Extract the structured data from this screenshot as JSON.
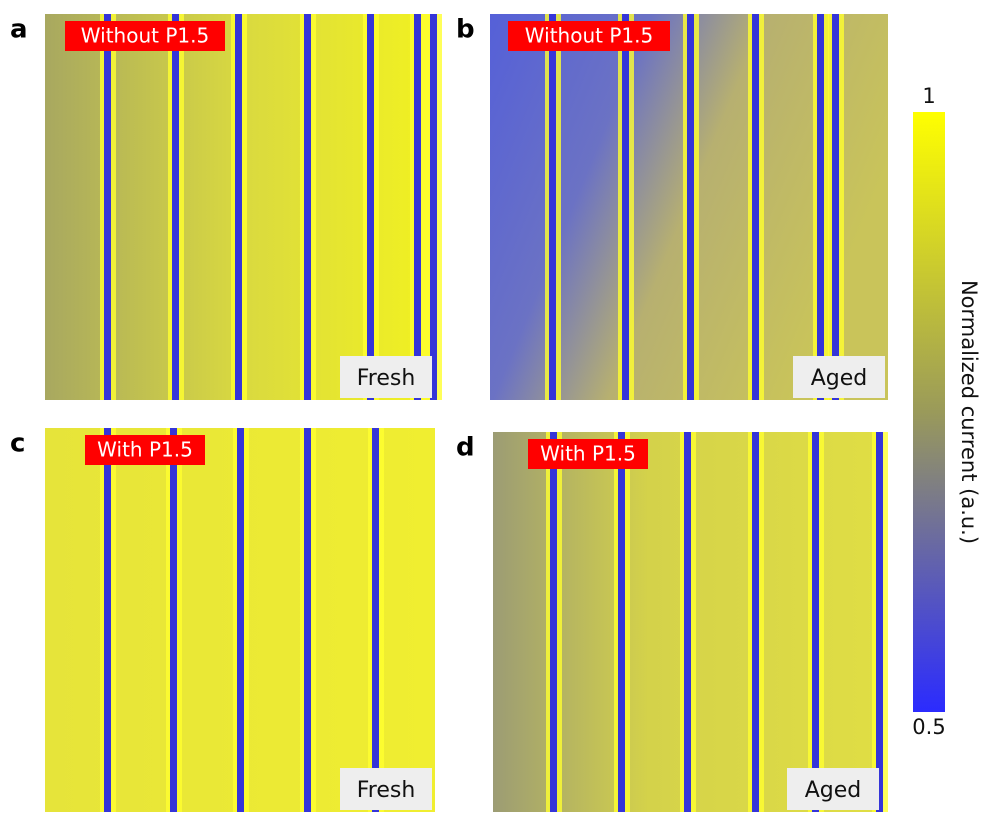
{
  "panels": [
    {
      "letter": "a",
      "label": "Without P1.5",
      "state": "Fresh"
    },
    {
      "letter": "b",
      "label": "Without P1.5",
      "state": "Aged"
    },
    {
      "letter": "c",
      "label": "With P1.5",
      "state": "Fresh"
    },
    {
      "letter": "d",
      "label": "With P1.5",
      "state": "Aged"
    }
  ],
  "colorbar": {
    "label": "Normalized current (a.u.)",
    "ticks": [
      1,
      0.5
    ]
  }
}
